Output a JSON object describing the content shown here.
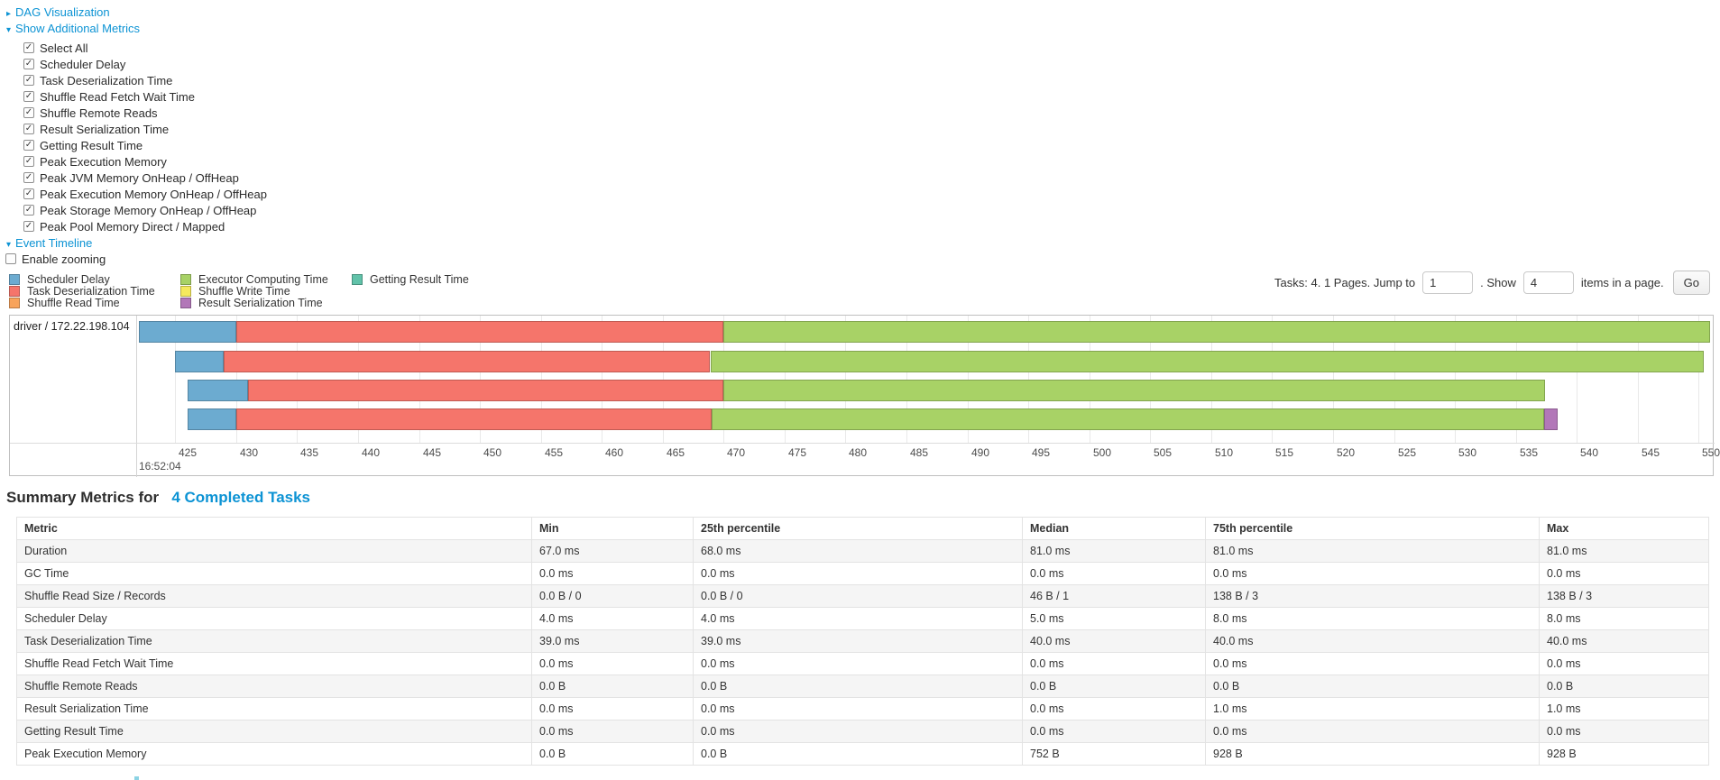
{
  "colors": {
    "link": "#0c93d4",
    "scheduler_delay": "#6CABD0",
    "task_deserialization": "#F5756B",
    "shuffle_read": "#F8A35B",
    "executor_computing": "#A8D266",
    "shuffle_write": "#F5E95D",
    "result_serialization": "#B277B8",
    "getting_result": "#61C2A9"
  },
  "sections": {
    "dag_label": "DAG Visualization",
    "additional_metrics_label": "Show Additional Metrics",
    "event_timeline_label": "Event Timeline",
    "enable_zooming_label": "Enable zooming",
    "enable_zooming_checked": false
  },
  "metric_checkboxes": [
    {
      "label": "Select All",
      "checked": true
    },
    {
      "label": "Scheduler Delay",
      "checked": true
    },
    {
      "label": "Task Deserialization Time",
      "checked": true
    },
    {
      "label": "Shuffle Read Fetch Wait Time",
      "checked": true
    },
    {
      "label": "Shuffle Remote Reads",
      "checked": true
    },
    {
      "label": "Result Serialization Time",
      "checked": true
    },
    {
      "label": "Getting Result Time",
      "checked": true
    },
    {
      "label": "Peak Execution Memory",
      "checked": true
    },
    {
      "label": "Peak JVM Memory OnHeap / OffHeap",
      "checked": true
    },
    {
      "label": "Peak Execution Memory OnHeap / OffHeap",
      "checked": true
    },
    {
      "label": "Peak Storage Memory OnHeap / OffHeap",
      "checked": true
    },
    {
      "label": "Peak Pool Memory Direct / Mapped",
      "checked": true
    }
  ],
  "legend": {
    "columns": [
      [
        {
          "label": "Scheduler Delay",
          "color_key": "scheduler_delay"
        },
        {
          "label": "Task Deserialization Time",
          "color_key": "task_deserialization"
        },
        {
          "label": "Shuffle Read Time",
          "color_key": "shuffle_read"
        }
      ],
      [
        {
          "label": "Executor Computing Time",
          "color_key": "executor_computing"
        },
        {
          "label": "Shuffle Write Time",
          "color_key": "shuffle_write"
        },
        {
          "label": "Result Serialization Time",
          "color_key": "result_serialization"
        }
      ],
      [
        {
          "label": "Getting Result Time",
          "color_key": "getting_result"
        }
      ]
    ]
  },
  "pagination": {
    "prefix": "Tasks: 4. 1 Pages. Jump to",
    "jump_value": "1",
    "mid": ". Show",
    "show_value": "4",
    "suffix": "items in a page.",
    "go_label": "Go"
  },
  "chart_data": {
    "type": "timeline-gantt",
    "group_label": "driver / 172.22.198.104",
    "axis": {
      "major_label": "16:52:04",
      "tick_start": 425,
      "tick_end": 550,
      "tick_step": 5,
      "window_start": 421.8,
      "window_end": 551.3,
      "unit": "ms"
    },
    "tasks": [
      {
        "segments": [
          {
            "name": "Scheduler Delay",
            "color_key": "scheduler_delay",
            "start": 422.0,
            "end": 430.0
          },
          {
            "name": "Task Deserialization Time",
            "color_key": "task_deserialization",
            "start": 430.0,
            "end": 470.0
          },
          {
            "name": "Executor Computing Time",
            "color_key": "executor_computing",
            "start": 470.0,
            "end": 550.9
          }
        ]
      },
      {
        "segments": [
          {
            "name": "Scheduler Delay",
            "color_key": "scheduler_delay",
            "start": 425.0,
            "end": 429.0
          },
          {
            "name": "Task Deserialization Time",
            "color_key": "task_deserialization",
            "start": 429.0,
            "end": 468.9
          },
          {
            "name": "Executor Computing Time",
            "color_key": "executor_computing",
            "start": 468.9,
            "end": 550.4
          }
        ]
      },
      {
        "segments": [
          {
            "name": "Scheduler Delay",
            "color_key": "scheduler_delay",
            "start": 426.0,
            "end": 431.0
          },
          {
            "name": "Task Deserialization Time",
            "color_key": "task_deserialization",
            "start": 431.0,
            "end": 470.0
          },
          {
            "name": "Executor Computing Time",
            "color_key": "executor_computing",
            "start": 470.0,
            "end": 537.4
          }
        ]
      },
      {
        "segments": [
          {
            "name": "Scheduler Delay",
            "color_key": "scheduler_delay",
            "start": 426.0,
            "end": 430.0
          },
          {
            "name": "Task Deserialization Time",
            "color_key": "task_deserialization",
            "start": 430.0,
            "end": 469.0
          },
          {
            "name": "Executor Computing Time",
            "color_key": "executor_computing",
            "start": 469.0,
            "end": 537.3
          },
          {
            "name": "Result Serialization Time",
            "color_key": "result_serialization",
            "start": 537.3,
            "end": 538.4
          }
        ]
      }
    ]
  },
  "summary": {
    "title_prefix": "Summary Metrics for",
    "title_link": "4 Completed Tasks",
    "headers": [
      "Metric",
      "Min",
      "25th percentile",
      "Median",
      "75th percentile",
      "Max"
    ],
    "rows": [
      {
        "metric": "Duration",
        "values": [
          "67.0 ms",
          "68.0 ms",
          "81.0 ms",
          "81.0 ms",
          "81.0 ms"
        ]
      },
      {
        "metric": "GC Time",
        "values": [
          "0.0 ms",
          "0.0 ms",
          "0.0 ms",
          "0.0 ms",
          "0.0 ms"
        ]
      },
      {
        "metric": "Shuffle Read Size / Records",
        "values": [
          "0.0 B / 0",
          "0.0 B / 0",
          "46 B / 1",
          "138 B / 3",
          "138 B / 3"
        ]
      },
      {
        "metric": "Scheduler Delay",
        "values": [
          "4.0 ms",
          "4.0 ms",
          "5.0 ms",
          "8.0 ms",
          "8.0 ms"
        ]
      },
      {
        "metric": "Task Deserialization Time",
        "values": [
          "39.0 ms",
          "39.0 ms",
          "40.0 ms",
          "40.0 ms",
          "40.0 ms"
        ]
      },
      {
        "metric": "Shuffle Read Fetch Wait Time",
        "values": [
          "0.0 ms",
          "0.0 ms",
          "0.0 ms",
          "0.0 ms",
          "0.0 ms"
        ]
      },
      {
        "metric": "Shuffle Remote Reads",
        "values": [
          "0.0 B",
          "0.0 B",
          "0.0 B",
          "0.0 B",
          "0.0 B"
        ]
      },
      {
        "metric": "Result Serialization Time",
        "values": [
          "0.0 ms",
          "0.0 ms",
          "0.0 ms",
          "1.0 ms",
          "1.0 ms"
        ]
      },
      {
        "metric": "Getting Result Time",
        "values": [
          "0.0 ms",
          "0.0 ms",
          "0.0 ms",
          "0.0 ms",
          "0.0 ms"
        ]
      },
      {
        "metric": "Peak Execution Memory",
        "values": [
          "0.0 B",
          "0.0 B",
          "752 B",
          "928 B",
          "928 B"
        ]
      }
    ]
  }
}
